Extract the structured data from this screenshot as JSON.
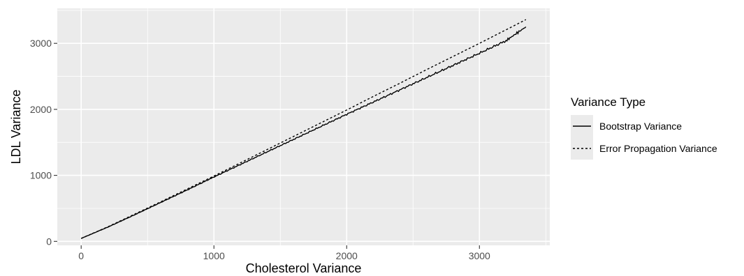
{
  "chart_data": {
    "type": "line",
    "title": "",
    "xlabel": "Cholesterol Variance",
    "ylabel": "LDL Variance",
    "xlim": [
      -180,
      3530
    ],
    "ylim": [
      -60,
      3530
    ],
    "x_ticks": [
      0,
      1000,
      2000,
      3000
    ],
    "y_ticks": [
      0,
      1000,
      2000,
      3000
    ],
    "x_tick_labels": [
      "0",
      "1000",
      "2000",
      "3000"
    ],
    "y_tick_labels": [
      "0",
      "1000",
      "2000",
      "3000"
    ],
    "grid": true,
    "panel_background": "#ebebeb",
    "grid_color": "#ffffff",
    "legend": {
      "title": "Variance Type",
      "placement": "right",
      "entries": [
        "Bootstrap Variance",
        "Error Propagation Variance"
      ]
    },
    "series": [
      {
        "name": "Bootstrap Variance",
        "style": "solid",
        "color": "#000000",
        "x": [
          0,
          200,
          400,
          600,
          800,
          1000,
          1200,
          1400,
          1600,
          1800,
          2000,
          2200,
          2400,
          2600,
          2800,
          3000,
          3200,
          3350
        ],
        "y": [
          45,
          215,
          400,
          590,
          780,
          975,
          1165,
          1355,
          1545,
          1735,
          1925,
          2110,
          2295,
          2480,
          2665,
          2850,
          3040,
          3250
        ]
      },
      {
        "name": "Error Propagation Variance",
        "style": "dashed",
        "color": "#000000",
        "x": [
          0,
          200,
          400,
          600,
          800,
          1000,
          1200,
          1400,
          1600,
          1800,
          2000,
          2200,
          2400,
          2600,
          2800,
          3000,
          3200,
          3350
        ],
        "y": [
          45,
          220,
          410,
          600,
          795,
          990,
          1190,
          1390,
          1590,
          1790,
          1990,
          2195,
          2395,
          2600,
          2800,
          3000,
          3205,
          3360
        ]
      }
    ]
  }
}
